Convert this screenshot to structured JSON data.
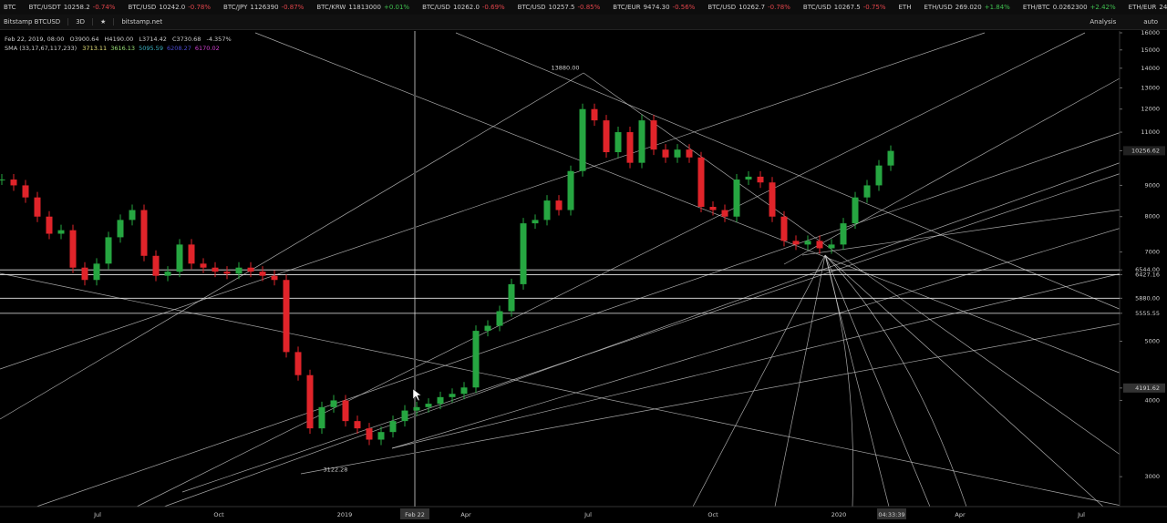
{
  "ticker": [
    {
      "symbol": "BTC"
    },
    {
      "symbol": "BTC/USDT",
      "price": "10258.2",
      "change": "-0.74%"
    },
    {
      "symbol": "BTC/USD",
      "price": "10242.0",
      "change": "-0.78%"
    },
    {
      "symbol": "BTC/JPY",
      "price": "1126390",
      "change": "-0.87%"
    },
    {
      "symbol": "BTC/KRW",
      "price": "11813000",
      "change": "+0.01%"
    },
    {
      "symbol": "BTC/USD",
      "price": "10262.0",
      "change": "-0.69%"
    },
    {
      "symbol": "BTC/USD",
      "price": "10257.5",
      "change": "-0.85%"
    },
    {
      "symbol": "BTC/EUR",
      "price": "9474.30",
      "change": "-0.56%"
    },
    {
      "symbol": "BTC/USD",
      "price": "10262.7",
      "change": "-0.78%"
    },
    {
      "symbol": "BTC/USD",
      "price": "10267.5",
      "change": "-0.75%"
    },
    {
      "symbol": "ETH"
    },
    {
      "symbol": "ETH/USD",
      "price": "269.020",
      "change": "+1.84%"
    },
    {
      "symbol": "ETH/BTC",
      "price": "0.0262300",
      "change": "+2.42%"
    },
    {
      "symbol": "ETH/EUR",
      "price": "248.430",
      "change": "+1"
    }
  ],
  "toolbar": {
    "symbol": "Bitstamp BTCUSD",
    "interval": "3D",
    "favorite": "★",
    "source": "bitstamp.net",
    "analysis": "Analysis",
    "scale": "auto"
  },
  "legend": {
    "date": "Feb 22, 2019, 08:00",
    "open": "O3900.64",
    "high": "H4190.00",
    "low": "L3714.42",
    "close": "C3730.68",
    "change": "-4.357%",
    "sma_label": "SMA (33,17,67,117,233)",
    "sma_values": [
      {
        "text": "3713.11",
        "color": "#e6e27a"
      },
      {
        "text": "3616.13",
        "color": "#9be37a"
      },
      {
        "text": "5095.59",
        "color": "#3bb3c4"
      },
      {
        "text": "6208.27",
        "color": "#4a4ad0"
      },
      {
        "text": "6170.02",
        "color": "#d040d0"
      }
    ]
  },
  "chart": {
    "type": "candlestick",
    "log_scale": true,
    "ylim": [
      2680,
      16000
    ],
    "yticks": [
      16000,
      15000,
      14000,
      13000,
      12000,
      11000,
      10256.62,
      9000,
      8000,
      7000,
      {
        "value": 6544,
        "label": "6544.00"
      },
      6427.16,
      {
        "value": 5880,
        "label": "5880.00"
      },
      5555.55,
      5000,
      4191.62,
      4000,
      3000
    ],
    "current_price": 10256.62,
    "crosshair_price": 4191.62,
    "levels": [
      6544,
      6427.16,
      5880,
      5555.55
    ],
    "x_labels": [
      "Jul",
      "Oct",
      "2019",
      "Feb 22",
      "Apr",
      "Jul",
      "Oct",
      "2020",
      "04:33:39",
      "Apr",
      "Jul"
    ],
    "annotations": [
      {
        "text": "13880.00",
        "value": 13880
      },
      {
        "text": "3122.28",
        "value": 3122.28
      }
    ],
    "colors": {
      "up": "#26a641",
      "down": "#e0242a"
    },
    "closes": [
      9200,
      9000,
      8600,
      8000,
      7500,
      7600,
      6600,
      6300,
      6700,
      7400,
      7900,
      8200,
      6900,
      6400,
      6500,
      7200,
      6700,
      6600,
      6500,
      6450,
      6600,
      6500,
      6400,
      6300,
      4800,
      4400,
      3600,
      3900,
      4000,
      3700,
      3600,
      3450,
      3550,
      3700,
      3850,
      3900,
      3950,
      4050,
      4100,
      4200,
      5200,
      5300,
      5600,
      6200,
      7800,
      7900,
      8500,
      8200,
      9500,
      12000,
      11500,
      10200,
      11000,
      9800,
      11500,
      10300,
      10000,
      10300,
      10000,
      8300,
      8200,
      8000,
      9200,
      9300,
      9100,
      8000,
      7300,
      7200,
      7300,
      7100,
      7200,
      7800,
      8600,
      9000,
      9700,
      10250
    ]
  }
}
